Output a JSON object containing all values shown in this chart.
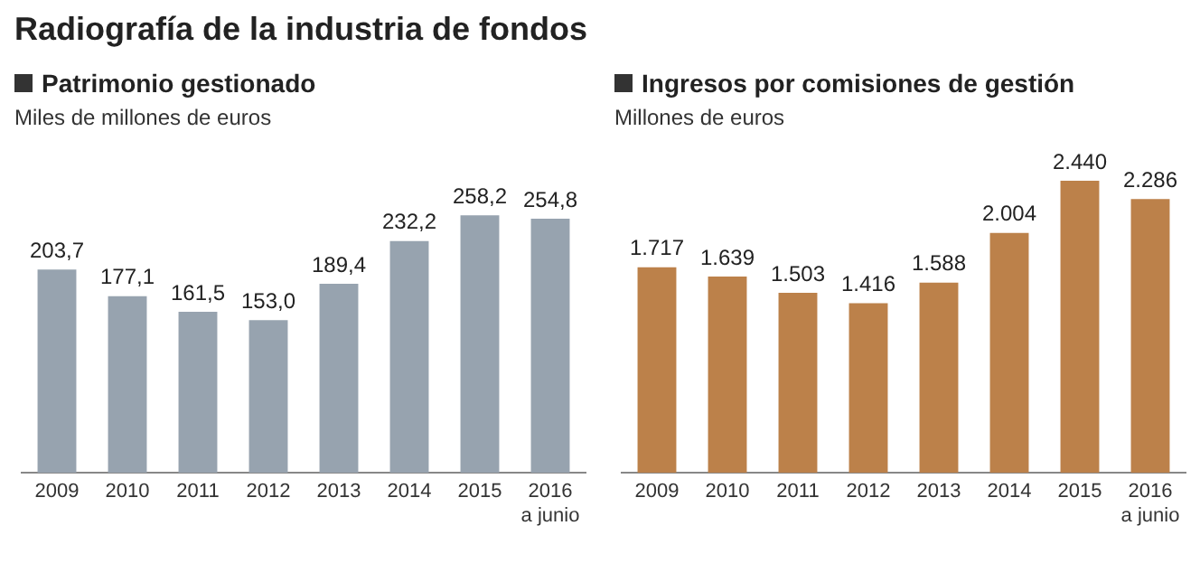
{
  "chart_data": [
    {
      "type": "bar",
      "title": "Patrimonio gestionado",
      "subtitle": "Miles de millones de euros",
      "annotations": [
        "Radiografía de la industria de fondos"
      ],
      "categories": [
        "2009",
        "2010",
        "2011",
        "2012",
        "2013",
        "2014",
        "2015",
        "2016\na junio"
      ],
      "values": [
        203.7,
        177.1,
        161.5,
        153.0,
        189.4,
        232.2,
        258.2,
        254.8
      ],
      "value_labels": [
        "203,7",
        "177,1",
        "161,5",
        "153,0",
        "189,4",
        "232,2",
        "258,2",
        "254,8"
      ],
      "color": "#97a3af",
      "grid": false,
      "legend": false
    },
    {
      "type": "bar",
      "title": "Ingresos por comisiones de gestión",
      "subtitle": "Millones de euros",
      "categories": [
        "2009",
        "2010",
        "2011",
        "2012",
        "2013",
        "2014",
        "2015",
        "2016\na junio"
      ],
      "values": [
        1717,
        1639,
        1503,
        1416,
        1588,
        2004,
        2440,
        2286
      ],
      "value_labels": [
        "1.717",
        "1.639",
        "1.503",
        "1.416",
        "1.588",
        "2.004",
        "2.440",
        "2.286"
      ],
      "color": "#bc814a",
      "grid": false,
      "legend": false
    }
  ]
}
